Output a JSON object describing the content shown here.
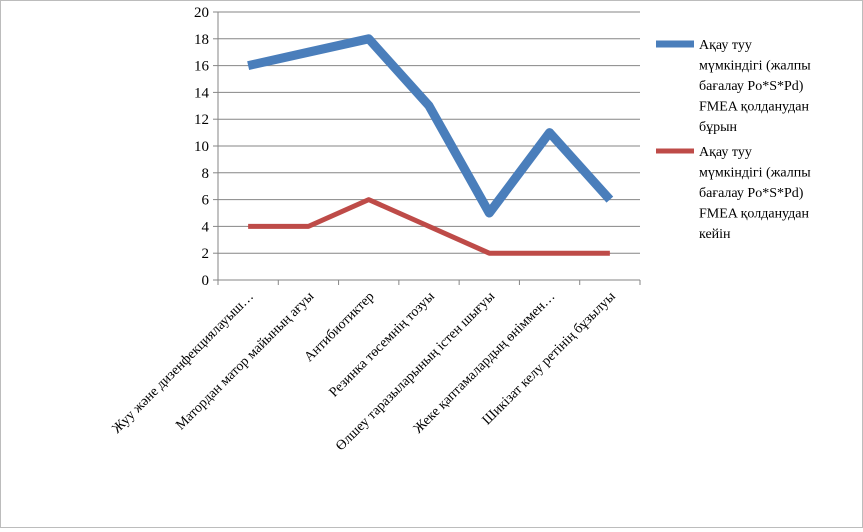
{
  "chart_data": {
    "type": "line",
    "title": "",
    "xlabel": "",
    "ylabel": "",
    "ylim": [
      0,
      20
    ],
    "yticks": [
      0,
      2,
      4,
      6,
      8,
      10,
      12,
      14,
      16,
      18,
      20
    ],
    "grid": true,
    "legend_position": "right",
    "categories": [
      "Жуу және дизенфекциялауыш…",
      "Матордан матор майының ағуы",
      "Антибиотиктер",
      "Резинка төсемнің тозуы",
      "Өлшеу таразыларының істен шығуы",
      "Жеке қаптамалардың өніммен…",
      "Шикізат келу ретінің бұзылуы"
    ],
    "series": [
      {
        "name": "Ақау туу мүмкіндігі (жалпы бағалау Po*S*Pd) FMEA қолданудан бұрын",
        "legend_lines": [
          "Ақау туу",
          "мүмкіндігі (жалпы",
          "бағалау Po*S*Pd)",
          "FMEA қолданудан",
          "бұрын"
        ],
        "color": "#4a7ebb",
        "values": [
          16,
          17,
          18,
          13,
          5,
          11,
          6
        ]
      },
      {
        "name": "Ақау туу мүмкіндігі (жалпы бағалау Po*S*Pd) FMEA қолданудан кейін",
        "legend_lines": [
          "Ақау туу",
          "мүмкіндігі (жалпы",
          "бағалау Po*S*Pd)",
          "FMEA қолданудан",
          "кейін"
        ],
        "color": "#be4b48",
        "values": [
          4,
          4,
          6,
          4,
          2,
          2,
          2
        ]
      }
    ]
  }
}
